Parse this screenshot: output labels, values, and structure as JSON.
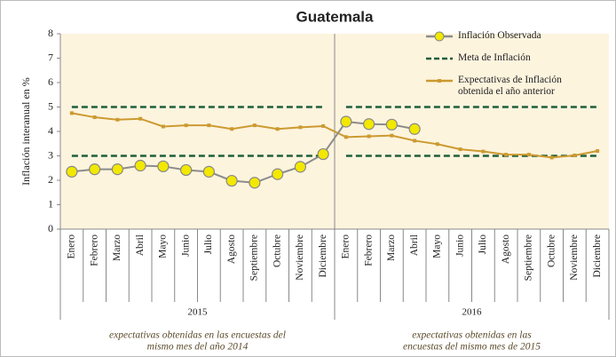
{
  "chart_data": {
    "type": "line",
    "title": "Guatemala",
    "ylabel": "Inflación interanual en %",
    "ylim": [
      0,
      8
    ],
    "yticks": [
      0,
      1,
      2,
      3,
      4,
      5,
      6,
      7,
      8
    ],
    "grid": false,
    "legend": "top-right",
    "groups": [
      {
        "label": "2015",
        "note": [
          "expectativas obtenidas en las encuestas del",
          "mismo mes del año 2014"
        ],
        "categories": [
          "Enero",
          "Febrero",
          "Marzo",
          "Abril",
          "Mayo",
          "Junio",
          "Julio",
          "Agosto",
          "Septiembre",
          "Octubre",
          "Noviembre",
          "Diciembre"
        ]
      },
      {
        "label": "2016",
        "note": [
          "expectativas obtenidas en las",
          "encuestas del mismo mes de 2015"
        ],
        "categories": [
          "Enero",
          "Febrero",
          "Marzo",
          "Abril",
          "Mayo",
          "Junio",
          "Julio",
          "Agosto",
          "Septiembre",
          "Octubre",
          "Noviembre",
          "Diciembre"
        ]
      }
    ],
    "series": [
      {
        "name": "Inflación Observada",
        "color": "#8c8c8c",
        "marker_color": "#f2e800",
        "values": [
          2.35,
          2.45,
          2.45,
          2.6,
          2.57,
          2.42,
          2.35,
          1.98,
          1.9,
          2.25,
          2.55,
          3.07,
          4.4,
          4.3,
          4.28,
          4.1,
          null,
          null,
          null,
          null,
          null,
          null,
          null,
          null
        ]
      },
      {
        "name": "Meta de Inflación",
        "color": "#1f5e3c",
        "lower": 3,
        "upper": 5
      },
      {
        "name": "Expectativas de Inflación obtenida el año anterior",
        "color": "#cc9a30",
        "values": [
          4.75,
          4.58,
          4.48,
          4.52,
          4.2,
          4.25,
          4.25,
          4.1,
          4.25,
          4.1,
          4.17,
          4.22,
          3.77,
          3.8,
          3.83,
          3.62,
          3.48,
          3.27,
          3.18,
          3.05,
          3.05,
          2.93,
          3.02,
          3.2
        ]
      }
    ]
  }
}
